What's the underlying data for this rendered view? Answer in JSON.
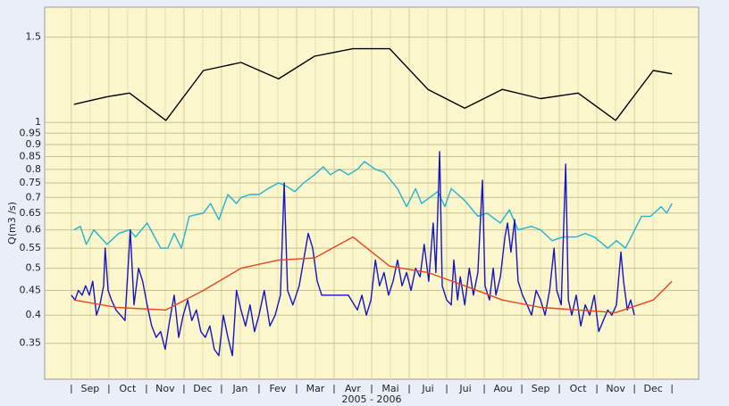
{
  "chart_data": {
    "type": "line",
    "yscale": "log",
    "grid": true,
    "y_label": "Q(m3 /s)",
    "x_label": "2005 - 2006",
    "categories": [
      "Sep",
      "Oct",
      "Nov",
      "Dec",
      "Jan",
      "Fev",
      "Mar",
      "Avr",
      "Mai",
      "Jui",
      "Jui",
      "Aou",
      "Sep",
      "Oct",
      "Nov",
      "Dec"
    ],
    "xlim": [
      -0.71,
      16.71
    ],
    "ylim": [
      0.295,
      1.73
    ],
    "yticks": [
      1.5,
      1,
      0.95,
      0.9,
      0.85,
      0.8,
      0.75,
      0.7,
      0.65,
      0.6,
      0.55,
      0.5,
      0.45,
      0.4,
      0.35
    ],
    "series": [
      {
        "color": "#000000",
        "x": [
          0.07,
          0.95,
          1.55,
          2.52,
          3.52,
          4.52,
          5.52,
          6.48,
          7.5,
          8.48,
          9.5,
          10.48,
          11.48,
          12.5,
          13.5,
          14.5,
          15.5,
          16
        ],
        "values": [
          1.09,
          1.13,
          1.15,
          1.01,
          1.28,
          1.33,
          1.23,
          1.37,
          1.42,
          1.42,
          1.17,
          1.07,
          1.17,
          1.12,
          1.15,
          1.01,
          1.28,
          1.26
        ]
      },
      {
        "color": "#22b4d4",
        "x": [
          0.07,
          0.24,
          0.4,
          0.6,
          0.95,
          1.26,
          1.55,
          1.71,
          2.02,
          2.38,
          2.57,
          2.74,
          2.93,
          3.14,
          3.52,
          3.71,
          3.93,
          4.17,
          4.4,
          4.52,
          4.76,
          5,
          5.24,
          5.52,
          5.71,
          5.95,
          6.19,
          6.48,
          6.71,
          6.9,
          7.14,
          7.38,
          7.62,
          7.81,
          8.1,
          8.33,
          8.69,
          8.93,
          9.17,
          9.33,
          9.76,
          9.95,
          10.12,
          10.48,
          10.83,
          11.07,
          11.43,
          11.67,
          11.9,
          12.26,
          12.5,
          12.81,
          13.1,
          13.45,
          13.69,
          13.93,
          14.29,
          14.52,
          14.76,
          15.19,
          15.43,
          15.71,
          15.86,
          16
        ],
        "values": [
          0.6,
          0.61,
          0.56,
          0.6,
          0.56,
          0.59,
          0.6,
          0.58,
          0.62,
          0.55,
          0.55,
          0.59,
          0.55,
          0.64,
          0.65,
          0.68,
          0.63,
          0.71,
          0.68,
          0.7,
          0.71,
          0.71,
          0.73,
          0.75,
          0.74,
          0.72,
          0.75,
          0.78,
          0.81,
          0.78,
          0.8,
          0.78,
          0.8,
          0.83,
          0.8,
          0.79,
          0.73,
          0.67,
          0.73,
          0.68,
          0.72,
          0.67,
          0.73,
          0.69,
          0.64,
          0.65,
          0.62,
          0.66,
          0.6,
          0.61,
          0.6,
          0.57,
          0.58,
          0.58,
          0.59,
          0.58,
          0.55,
          0.57,
          0.55,
          0.64,
          0.64,
          0.67,
          0.65,
          0.68
        ]
      },
      {
        "color": "#1414c8",
        "x": [
          0,
          0.1,
          0.19,
          0.29,
          0.38,
          0.48,
          0.57,
          0.67,
          0.76,
          0.86,
          0.9,
          0.98,
          1.07,
          1.19,
          1.31,
          1.43,
          1.57,
          1.67,
          1.79,
          1.9,
          2.02,
          2.14,
          2.26,
          2.38,
          2.5,
          2.62,
          2.74,
          2.86,
          2.98,
          3.1,
          3.21,
          3.33,
          3.45,
          3.57,
          3.69,
          3.81,
          3.93,
          4.05,
          4.17,
          4.29,
          4.4,
          4.52,
          4.64,
          4.76,
          4.88,
          5,
          5.14,
          5.29,
          5.43,
          5.57,
          5.67,
          5.76,
          5.9,
          6.07,
          6.19,
          6.31,
          6.43,
          6.55,
          6.67,
          6.9,
          7.14,
          7.38,
          7.62,
          7.74,
          7.86,
          7.98,
          8.1,
          8.21,
          8.33,
          8.45,
          8.57,
          8.69,
          8.81,
          8.93,
          9.05,
          9.17,
          9.29,
          9.4,
          9.52,
          9.64,
          9.71,
          9.81,
          9.88,
          10,
          10.12,
          10.19,
          10.29,
          10.36,
          10.48,
          10.6,
          10.71,
          10.83,
          10.95,
          11.02,
          11.14,
          11.24,
          11.31,
          11.43,
          11.55,
          11.62,
          11.71,
          11.81,
          11.9,
          12.02,
          12.14,
          12.26,
          12.38,
          12.5,
          12.62,
          12.74,
          12.86,
          12.93,
          13.05,
          13.17,
          13.24,
          13.33,
          13.45,
          13.57,
          13.69,
          13.81,
          13.93,
          14.05,
          14.17,
          14.29,
          14.4,
          14.52,
          14.64,
          14.71,
          14.81,
          14.9,
          15
        ],
        "values": [
          0.44,
          0.43,
          0.45,
          0.44,
          0.46,
          0.44,
          0.47,
          0.4,
          0.42,
          0.46,
          0.55,
          0.45,
          0.43,
          0.41,
          0.4,
          0.39,
          0.6,
          0.42,
          0.5,
          0.47,
          0.42,
          0.38,
          0.36,
          0.37,
          0.34,
          0.39,
          0.44,
          0.36,
          0.4,
          0.43,
          0.39,
          0.41,
          0.37,
          0.36,
          0.38,
          0.34,
          0.33,
          0.4,
          0.36,
          0.33,
          0.45,
          0.41,
          0.38,
          0.42,
          0.37,
          0.4,
          0.45,
          0.38,
          0.4,
          0.44,
          0.75,
          0.45,
          0.42,
          0.46,
          0.52,
          0.59,
          0.55,
          0.47,
          0.44,
          0.44,
          0.44,
          0.44,
          0.41,
          0.44,
          0.4,
          0.43,
          0.52,
          0.46,
          0.49,
          0.44,
          0.47,
          0.52,
          0.46,
          0.49,
          0.45,
          0.5,
          0.48,
          0.56,
          0.47,
          0.62,
          0.49,
          0.87,
          0.46,
          0.43,
          0.42,
          0.52,
          0.43,
          0.48,
          0.42,
          0.5,
          0.44,
          0.49,
          0.76,
          0.46,
          0.43,
          0.5,
          0.44,
          0.48,
          0.58,
          0.62,
          0.54,
          0.63,
          0.47,
          0.44,
          0.42,
          0.4,
          0.45,
          0.43,
          0.4,
          0.45,
          0.55,
          0.45,
          0.42,
          0.82,
          0.43,
          0.4,
          0.44,
          0.38,
          0.42,
          0.4,
          0.44,
          0.37,
          0.39,
          0.41,
          0.4,
          0.42,
          0.54,
          0.47,
          0.41,
          0.43,
          0.4
        ]
      },
      {
        "color": "#e8461e",
        "x": [
          0.07,
          1.2,
          2.52,
          3.52,
          4.52,
          5.52,
          6.48,
          7.5,
          8.48,
          9.5,
          10.48,
          11.48,
          12.5,
          13.5,
          14.5,
          15.5,
          16
        ],
        "values": [
          0.43,
          0.415,
          0.41,
          0.45,
          0.5,
          0.52,
          0.525,
          0.58,
          0.505,
          0.49,
          0.46,
          0.43,
          0.415,
          0.41,
          0.405,
          0.43,
          0.47
        ]
      }
    ]
  }
}
